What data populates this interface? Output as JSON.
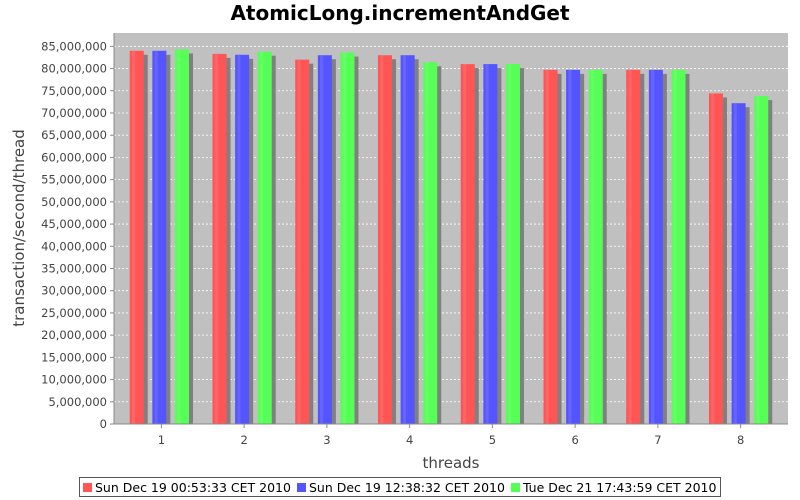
{
  "chart_data": {
    "type": "bar",
    "title": "AtomicLong.incrementAndGet",
    "xlabel": "threads",
    "ylabel": "transaction/second/thread",
    "categories": [
      "1",
      "2",
      "3",
      "4",
      "5",
      "6",
      "7",
      "8"
    ],
    "ylim": [
      0,
      88000000
    ],
    "yticks": [
      {
        "value": 0,
        "label": "0"
      },
      {
        "value": 5000000,
        "label": "5,000,000"
      },
      {
        "value": 10000000,
        "label": "10,000,000"
      },
      {
        "value": 15000000,
        "label": "15,000,000"
      },
      {
        "value": 20000000,
        "label": "20,000,000"
      },
      {
        "value": 25000000,
        "label": "25,000,000"
      },
      {
        "value": 30000000,
        "label": "30,000,000"
      },
      {
        "value": 35000000,
        "label": "35,000,000"
      },
      {
        "value": 40000000,
        "label": "40,000,000"
      },
      {
        "value": 45000000,
        "label": "45,000,000"
      },
      {
        "value": 50000000,
        "label": "50,000,000"
      },
      {
        "value": 55000000,
        "label": "55,000,000"
      },
      {
        "value": 60000000,
        "label": "60,000,000"
      },
      {
        "value": 65000000,
        "label": "65,000,000"
      },
      {
        "value": 70000000,
        "label": "70,000,000"
      },
      {
        "value": 75000000,
        "label": "75,000,000"
      },
      {
        "value": 80000000,
        "label": "80,000,000"
      },
      {
        "value": 85000000,
        "label": "85,000,000"
      }
    ],
    "grid": true,
    "legend_position": "bottom",
    "series": [
      {
        "name": "Sun Dec 19 00:53:33 CET 2010",
        "color": "#ff5555",
        "values": [
          84000000,
          83300000,
          82000000,
          83000000,
          81000000,
          79700000,
          79700000,
          74400000
        ]
      },
      {
        "name": "Sun Dec 19 12:38:32 CET 2010",
        "color": "#5555ff",
        "values": [
          84000000,
          83100000,
          83000000,
          83000000,
          81000000,
          79700000,
          79700000,
          72200000
        ]
      },
      {
        "name": "Tue Dec 21 17:43:59 CET 2010",
        "color": "#55ff55",
        "values": [
          84300000,
          83800000,
          83600000,
          81400000,
          81000000,
          79700000,
          79700000,
          73800000
        ]
      }
    ]
  },
  "style": {
    "plot_background": "#c0c0c0",
    "gridline_color": "#ffffff",
    "shadow_color": "#808080"
  }
}
